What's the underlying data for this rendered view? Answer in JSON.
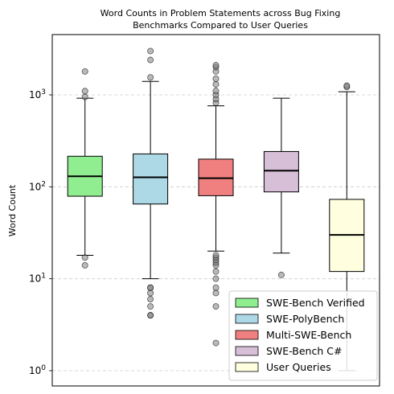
{
  "chart_data": {
    "type": "boxplot",
    "title": "Word Counts in Problem Statements across Bug Fixing\nBenchmarks Compared to User Queries",
    "ylabel": "Word Count",
    "xlabel": "",
    "yscale": "log",
    "ylim": [
      0.7,
      4500
    ],
    "yticks": [
      {
        "value": 1,
        "base": "10",
        "exp": "0"
      },
      {
        "value": 10,
        "base": "10",
        "exp": "1"
      },
      {
        "value": 100,
        "base": "10",
        "exp": "2"
      },
      {
        "value": 1000,
        "base": "10",
        "exp": "3"
      }
    ],
    "grid": "horizontal-dashed",
    "legend_position": "bottom-right",
    "series": [
      {
        "name": "SWE-Bench Verified",
        "color": "#90ee90",
        "whisker_low": 18,
        "q1": 79,
        "median": 130,
        "q3": 215,
        "whisker_high": 920,
        "outliers": [
          14,
          17,
          950,
          1100,
          1800
        ]
      },
      {
        "name": "SWE-PolyBench",
        "color": "#add8e6",
        "whisker_low": 10,
        "q1": 65,
        "median": 127,
        "q3": 228,
        "whisker_high": 1400,
        "outliers": [
          4,
          4,
          5,
          6,
          7,
          8,
          8,
          1550,
          2400,
          3000
        ]
      },
      {
        "name": "Multi-SWE-Bench",
        "color": "#f08080",
        "whisker_low": 20,
        "q1": 80,
        "median": 124,
        "q3": 200,
        "whisker_high": 760,
        "outliers": [
          2,
          5,
          7,
          8,
          10,
          12,
          14,
          15,
          16,
          17,
          18,
          820,
          900,
          1000,
          1100,
          1300,
          1500,
          1800,
          2000,
          2100
        ]
      },
      {
        "name": "SWE-Bench C#",
        "color": "#d8bfd8",
        "whisker_low": 19,
        "q1": 88,
        "median": 150,
        "q3": 242,
        "whisker_high": 920,
        "outliers": [
          11
        ]
      },
      {
        "name": "User Queries",
        "color": "#ffffe0",
        "whisker_low": 1,
        "q1": 12,
        "median": 30,
        "q3": 73,
        "whisker_high": 1080,
        "outliers": [
          1220,
          1260
        ]
      }
    ]
  }
}
